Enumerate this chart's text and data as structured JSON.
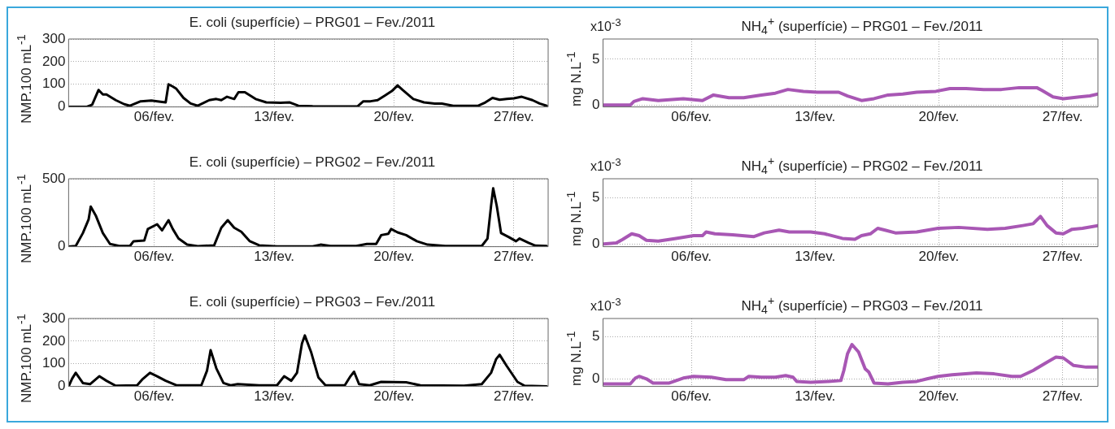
{
  "chart_data": [
    {
      "type": "line",
      "title": "E. coli (superfície) – PRG01 – Fev./2011",
      "ylabel": "NMP.100 mL$^{-1}$",
      "color": "#000000",
      "grid": true,
      "xlim": [
        "2011-02-01",
        "2011-03-01"
      ],
      "xticks": [
        {
          "value": "2011-02-06",
          "label": "06/fev."
        },
        {
          "value": "2011-02-13",
          "label": "13/fev."
        },
        {
          "value": "2011-02-20",
          "label": "20/fev."
        },
        {
          "value": "2011-02-27",
          "label": "27/fev."
        }
      ],
      "ylim": [
        0,
        300
      ],
      "yticks": [
        0,
        100,
        200,
        300
      ],
      "x": [
        "2011-02-01T00:00",
        "2011-02-02T01:00",
        "2011-02-02T09:00",
        "2011-02-02T18:00",
        "2011-02-03T00:00",
        "2011-02-03T05:00",
        "2011-02-03T18:00",
        "2011-02-04T06:00",
        "2011-02-04T14:00",
        "2011-02-05T05:00",
        "2011-02-05T20:00",
        "2011-02-06T11:00",
        "2011-02-06T16:00",
        "2011-02-06T20:00",
        "2011-02-07T02:00",
        "2011-02-07T07:00",
        "2011-02-07T17:00",
        "2011-02-08T03:00",
        "2011-02-08T13:00",
        "2011-02-09T05:00",
        "2011-02-09T15:00",
        "2011-02-09T22:00",
        "2011-02-10T06:00",
        "2011-02-10T16:00",
        "2011-02-10T22:00",
        "2011-02-11T07:00",
        "2011-02-11T22:00",
        "2011-02-12T13:00",
        "2011-02-13T09:00",
        "2011-02-13T22:00",
        "2011-02-14T10:00",
        "2011-02-15T06:00",
        "2011-02-16T18:00",
        "2011-02-17T21:00",
        "2011-02-18T05:00",
        "2011-02-18T15:00",
        "2011-02-19T01:00",
        "2011-02-19T11:00",
        "2011-02-19T21:00",
        "2011-02-20T05:00",
        "2011-02-20T12:00",
        "2011-02-21T03:00",
        "2011-02-21T18:00",
        "2011-02-22T09:00",
        "2011-02-22T19:00",
        "2011-02-23T11:00",
        "2011-02-24T22:00",
        "2011-02-25T08:00",
        "2011-02-25T18:00",
        "2011-02-26T04:00",
        "2011-02-26T14:00",
        "2011-02-27T00:00",
        "2011-02-27T11:00",
        "2011-02-28T02:00",
        "2011-02-28T12:00",
        "2011-02-28T22:00"
      ],
      "values": [
        0,
        0,
        10,
        75,
        55,
        55,
        30,
        12,
        5,
        25,
        28,
        22,
        20,
        100,
        90,
        80,
        40,
        15,
        5,
        30,
        35,
        30,
        45,
        35,
        65,
        65,
        35,
        20,
        18,
        20,
        5,
        3,
        2,
        3,
        25,
        25,
        30,
        50,
        70,
        95,
        75,
        35,
        20,
        15,
        15,
        5,
        5,
        20,
        40,
        32,
        35,
        38,
        45,
        30,
        15,
        5
      ]
    },
    {
      "type": "line",
      "title": "NH$_{4}$$^{+}$ (superfície) – PRG01 – Fev./2011",
      "ylabel": "mg N.L$^{-1}$",
      "annotations": [
        "x10$^{-3}$"
      ],
      "color": "#a857b4",
      "grid": true,
      "xlim": [
        "2011-02-01",
        "2011-03-01"
      ],
      "xticks": [
        {
          "value": "2011-02-06",
          "label": "06/fev."
        },
        {
          "value": "2011-02-13",
          "label": "13/fev."
        },
        {
          "value": "2011-02-20",
          "label": "20/fev."
        },
        {
          "value": "2011-02-27",
          "label": "27/fev."
        }
      ],
      "ylim": [
        -0.2,
        7.2
      ],
      "yticks": [
        0,
        5
      ],
      "x": [
        "2011-02-01T01:00",
        "2011-02-02T13:00",
        "2011-02-02T18:00",
        "2011-02-03T06:00",
        "2011-02-04T03:00",
        "2011-02-05T13:00",
        "2011-02-06T15:00",
        "2011-02-07T06:00",
        "2011-02-08T03:00",
        "2011-02-08T23:00",
        "2011-02-09T23:00",
        "2011-02-10T18:00",
        "2011-02-11T11:00",
        "2011-02-12T08:00",
        "2011-02-13T03:00",
        "2011-02-14T08:00",
        "2011-02-14T20:00",
        "2011-02-15T15:00",
        "2011-02-16T08:00",
        "2011-02-17T03:00",
        "2011-02-17T23:00",
        "2011-02-18T18:00",
        "2011-02-19T20:00",
        "2011-02-20T15:00",
        "2011-02-21T13:00",
        "2011-02-22T13:00",
        "2011-02-23T13:00",
        "2011-02-24T13:00",
        "2011-02-25T13:00",
        "2011-02-25T20:00",
        "2011-02-26T11:00",
        "2011-02-27T01:00",
        "2011-02-27T23:00",
        "2011-02-28T13:00",
        "2011-03-01T00:00"
      ],
      "values": [
        0,
        0,
        0.4,
        0.7,
        0.5,
        0.7,
        0.5,
        1.1,
        0.8,
        0.8,
        1.1,
        1.3,
        1.7,
        1.5,
        1.4,
        1.4,
        1.0,
        0.5,
        0.7,
        1.1,
        1.2,
        1.4,
        1.5,
        1.8,
        1.8,
        1.7,
        1.7,
        1.9,
        1.9,
        1.6,
        0.9,
        0.7,
        0.9,
        1.0,
        1.2
      ]
    },
    {
      "type": "line",
      "title": "E. coli (superfície) – PRG02 – Fev./2011",
      "ylabel": "NMP.100 mL$^{-1}$",
      "color": "#000000",
      "grid": true,
      "xlim": [
        "2011-02-01",
        "2011-03-01"
      ],
      "xticks": [
        {
          "value": "2011-02-06",
          "label": "06/fev."
        },
        {
          "value": "2011-02-13",
          "label": "13/fev."
        },
        {
          "value": "2011-02-20",
          "label": "20/fev."
        },
        {
          "value": "2011-02-27",
          "label": "27/fev."
        }
      ],
      "ylim": [
        0,
        500
      ],
      "yticks": [
        0,
        500
      ],
      "x": [
        "2011-02-01T00:00",
        "2011-02-01T10:00",
        "2011-02-01T20:00",
        "2011-02-02T04:00",
        "2011-02-02T07:00",
        "2011-02-02T14:00",
        "2011-02-03T00:00",
        "2011-02-03T10:00",
        "2011-02-03T23:00",
        "2011-02-04T14:00",
        "2011-02-04T19:00",
        "2011-02-05T10:00",
        "2011-02-05T15:00",
        "2011-02-06T04:00",
        "2011-02-06T11:00",
        "2011-02-06T20:00",
        "2011-02-07T02:00",
        "2011-02-07T10:00",
        "2011-02-07T22:00",
        "2011-02-08T13:00",
        "2011-02-09T12:00",
        "2011-02-09T22:00",
        "2011-02-10T07:00",
        "2011-02-10T16:00",
        "2011-02-11T02:00",
        "2011-02-11T14:00",
        "2011-02-12T03:00",
        "2011-02-13T04:00",
        "2011-02-15T06:00",
        "2011-02-15T17:00",
        "2011-02-16T07:00",
        "2011-02-17T19:00",
        "2011-02-18T10:00",
        "2011-02-18T23:00",
        "2011-02-19T06:00",
        "2011-02-19T16:00",
        "2011-02-19T20:00",
        "2011-02-20T05:00",
        "2011-02-20T17:00",
        "2011-02-21T08:00",
        "2011-02-21T23:00",
        "2011-02-23T00:00",
        "2011-02-25T03:00",
        "2011-02-25T11:00",
        "2011-02-25T16:00",
        "2011-02-25T19:00",
        "2011-02-26T00:00",
        "2011-02-26T06:00",
        "2011-02-26T17:00",
        "2011-02-27T03:00",
        "2011-02-27T08:00",
        "2011-02-27T20:00",
        "2011-02-28T06:00",
        "2011-02-28T22:00"
      ],
      "values": [
        0,
        5,
        100,
        200,
        295,
        230,
        100,
        20,
        5,
        5,
        40,
        45,
        130,
        165,
        120,
        195,
        130,
        60,
        15,
        3,
        10,
        140,
        195,
        140,
        110,
        40,
        10,
        2,
        2,
        15,
        5,
        5,
        20,
        20,
        85,
        95,
        130,
        105,
        85,
        40,
        15,
        5,
        5,
        60,
        300,
        430,
        300,
        100,
        70,
        40,
        60,
        30,
        8,
        5
      ]
    },
    {
      "type": "line",
      "title": "NH$_{4}$$^{+}$ (superfície) – PRG02 – Fev./2011",
      "ylabel": "mg N.L$^{-1}$",
      "annotations": [
        "x10$^{-3}$"
      ],
      "color": "#a857b4",
      "grid": true,
      "xlim": [
        "2011-02-01",
        "2011-03-01"
      ],
      "xticks": [
        {
          "value": "2011-02-06",
          "label": "06/fev."
        },
        {
          "value": "2011-02-13",
          "label": "13/fev."
        },
        {
          "value": "2011-02-20",
          "label": "20/fev."
        },
        {
          "value": "2011-02-27",
          "label": "27/fev."
        }
      ],
      "ylim": [
        -0.3,
        7.1
      ],
      "yticks": [
        0,
        5
      ],
      "x": [
        "2011-02-01T01:00",
        "2011-02-01T18:00",
        "2011-02-02T03:00",
        "2011-02-02T15:00",
        "2011-02-03T01:00",
        "2011-02-03T11:00",
        "2011-02-04T03:00",
        "2011-02-05T03:00",
        "2011-02-06T03:00",
        "2011-02-06T15:00",
        "2011-02-06T20:00",
        "2011-02-07T08:00",
        "2011-02-08T08:00",
        "2011-02-09T13:00",
        "2011-02-10T03:00",
        "2011-02-10T23:00",
        "2011-02-11T13:00",
        "2011-02-12T18:00",
        "2011-02-13T13:00",
        "2011-02-14T13:00",
        "2011-02-15T06:00",
        "2011-02-15T15:00",
        "2011-02-16T03:00",
        "2011-02-16T13:00",
        "2011-02-16T23:00",
        "2011-02-17T13:00",
        "2011-02-18T18:00",
        "2011-02-19T23:00",
        "2011-02-21T03:00",
        "2011-02-22T18:00",
        "2011-02-23T18:00",
        "2011-02-24T18:00",
        "2011-02-25T08:00",
        "2011-02-25T18:00",
        "2011-02-26T03:00",
        "2011-02-26T15:00",
        "2011-02-27T01:00",
        "2011-02-27T13:00",
        "2011-02-28T03:00",
        "2011-03-01T00:00"
      ],
      "values": [
        0,
        0.1,
        0.5,
        1.1,
        0.9,
        0.4,
        0.3,
        0.6,
        0.9,
        0.9,
        1.3,
        1.1,
        1.0,
        0.8,
        1.2,
        1.5,
        1.3,
        1.3,
        1.1,
        0.6,
        0.5,
        0.9,
        1.1,
        1.7,
        1.5,
        1.2,
        1.3,
        1.7,
        1.8,
        1.6,
        1.7,
        2.0,
        2.2,
        3.0,
        2.0,
        1.2,
        1.1,
        1.6,
        1.7,
        2.0
      ]
    },
    {
      "type": "line",
      "title": "E. coli (superfície) – PRG03 – Fev./2011",
      "ylabel": "NMP.100 mL$^{-1}$",
      "color": "#000000",
      "grid": true,
      "xlim": [
        "2011-02-01",
        "2011-03-01"
      ],
      "xticks": [
        {
          "value": "2011-02-06",
          "label": "06/fev."
        },
        {
          "value": "2011-02-13",
          "label": "13/fev."
        },
        {
          "value": "2011-02-20",
          "label": "20/fev."
        },
        {
          "value": "2011-02-27",
          "label": "27/fev."
        }
      ],
      "ylim": [
        0,
        300
      ],
      "yticks": [
        0,
        100,
        200,
        300
      ],
      "x": [
        "2011-02-01T00:00",
        "2011-02-01T05:00",
        "2011-02-01T10:00",
        "2011-02-01T20:00",
        "2011-02-02T06:00",
        "2011-02-02T19:00",
        "2011-02-03T05:00",
        "2011-02-03T18:00",
        "2011-02-05T00:00",
        "2011-02-05T07:00",
        "2011-02-05T18:00",
        "2011-02-06T04:00",
        "2011-02-06T16:00",
        "2011-02-07T07:00",
        "2011-02-08T18:00",
        "2011-02-09T02:00",
        "2011-02-09T07:00",
        "2011-02-09T15:00",
        "2011-02-10T01:00",
        "2011-02-10T11:00",
        "2011-02-10T21:00",
        "2011-02-12T03:00",
        "2011-02-13T04:00",
        "2011-02-13T14:00",
        "2011-02-14T00:00",
        "2011-02-14T08:00",
        "2011-02-14T15:00",
        "2011-02-14T19:00",
        "2011-02-15T04:00",
        "2011-02-15T14:00",
        "2011-02-16T00:00",
        "2011-02-17T03:00",
        "2011-02-17T11:00",
        "2011-02-17T16:00",
        "2011-02-17T23:00",
        "2011-02-18T14:00",
        "2011-02-19T06:00",
        "2011-02-20T17:00",
        "2011-02-21T13:00",
        "2011-02-24T02:00",
        "2011-02-25T03:00",
        "2011-02-25T16:00",
        "2011-02-25T23:00",
        "2011-02-26T04:00",
        "2011-02-26T14:00",
        "2011-02-27T05:00",
        "2011-02-27T15:00",
        "2011-02-28T22:00"
      ],
      "values": [
        0,
        35,
        60,
        15,
        10,
        45,
        25,
        3,
        5,
        30,
        60,
        45,
        25,
        5,
        5,
        70,
        160,
        80,
        15,
        5,
        10,
        5,
        5,
        45,
        25,
        60,
        190,
        225,
        150,
        40,
        5,
        5,
        45,
        65,
        10,
        5,
        20,
        18,
        5,
        3,
        10,
        60,
        120,
        140,
        90,
        20,
        3,
        0
      ]
    },
    {
      "type": "line",
      "title": "NH$_{4}$$^{+}$ (superfície) – PRG03 – Fev./2011",
      "ylabel": "mg N.L$^{-1}$",
      "annotations": [
        "x10$^{-3}$"
      ],
      "color": "#a857b4",
      "grid": true,
      "xlim": [
        "2011-02-01",
        "2011-03-01"
      ],
      "xticks": [
        {
          "value": "2011-02-06",
          "label": "06/fev."
        },
        {
          "value": "2011-02-13",
          "label": "13/fev."
        },
        {
          "value": "2011-02-20",
          "label": "20/fev."
        },
        {
          "value": "2011-02-27",
          "label": "27/fev."
        }
      ],
      "ylim": [
        -0.9,
        7.2
      ],
      "yticks": [
        0,
        5
      ],
      "x": [
        "2011-02-01T01:00",
        "2011-02-02T13:00",
        "2011-02-02T20:00",
        "2011-02-03T01:00",
        "2011-02-03T11:00",
        "2011-02-03T20:00",
        "2011-02-04T18:00",
        "2011-02-05T13:00",
        "2011-02-06T03:00",
        "2011-02-07T03:00",
        "2011-02-07T23:00",
        "2011-02-08T23:00",
        "2011-02-09T06:00",
        "2011-02-09T23:00",
        "2011-02-10T18:00",
        "2011-02-11T08:00",
        "2011-02-11T18:00",
        "2011-02-11T23:00",
        "2011-02-12T18:00",
        "2011-02-13T18:00",
        "2011-02-14T11:00",
        "2011-02-14T15:00",
        "2011-02-14T20:00",
        "2011-02-15T02:00",
        "2011-02-15T11:00",
        "2011-02-15T20:00",
        "2011-02-16T01:00",
        "2011-02-16T08:00",
        "2011-02-17T03:00",
        "2011-02-17T23:00",
        "2011-02-18T18:00",
        "2011-02-19T08:00",
        "2011-02-19T23:00",
        "2011-02-20T18:00",
        "2011-02-22T03:00",
        "2011-02-23T03:00",
        "2011-02-24T03:00",
        "2011-02-24T15:00",
        "2011-02-25T08:00",
        "2011-02-26T03:00",
        "2011-02-26T15:00",
        "2011-02-27T01:00",
        "2011-02-27T15:00",
        "2011-02-28T08:00",
        "2011-03-01T00:00"
      ],
      "values": [
        -0.6,
        -0.6,
        0.1,
        0.3,
        0.0,
        -0.5,
        -0.5,
        0.1,
        0.3,
        0.2,
        -0.1,
        -0.1,
        0.3,
        0.2,
        0.2,
        0.4,
        0.2,
        -0.3,
        -0.4,
        -0.3,
        -0.2,
        1.0,
        3.0,
        4.1,
        3.2,
        1.2,
        0.8,
        -0.5,
        -0.6,
        -0.4,
        -0.3,
        0.0,
        0.3,
        0.5,
        0.7,
        0.6,
        0.3,
        0.3,
        1.0,
        2.0,
        2.6,
        2.5,
        1.6,
        1.4,
        1.4
      ]
    }
  ]
}
